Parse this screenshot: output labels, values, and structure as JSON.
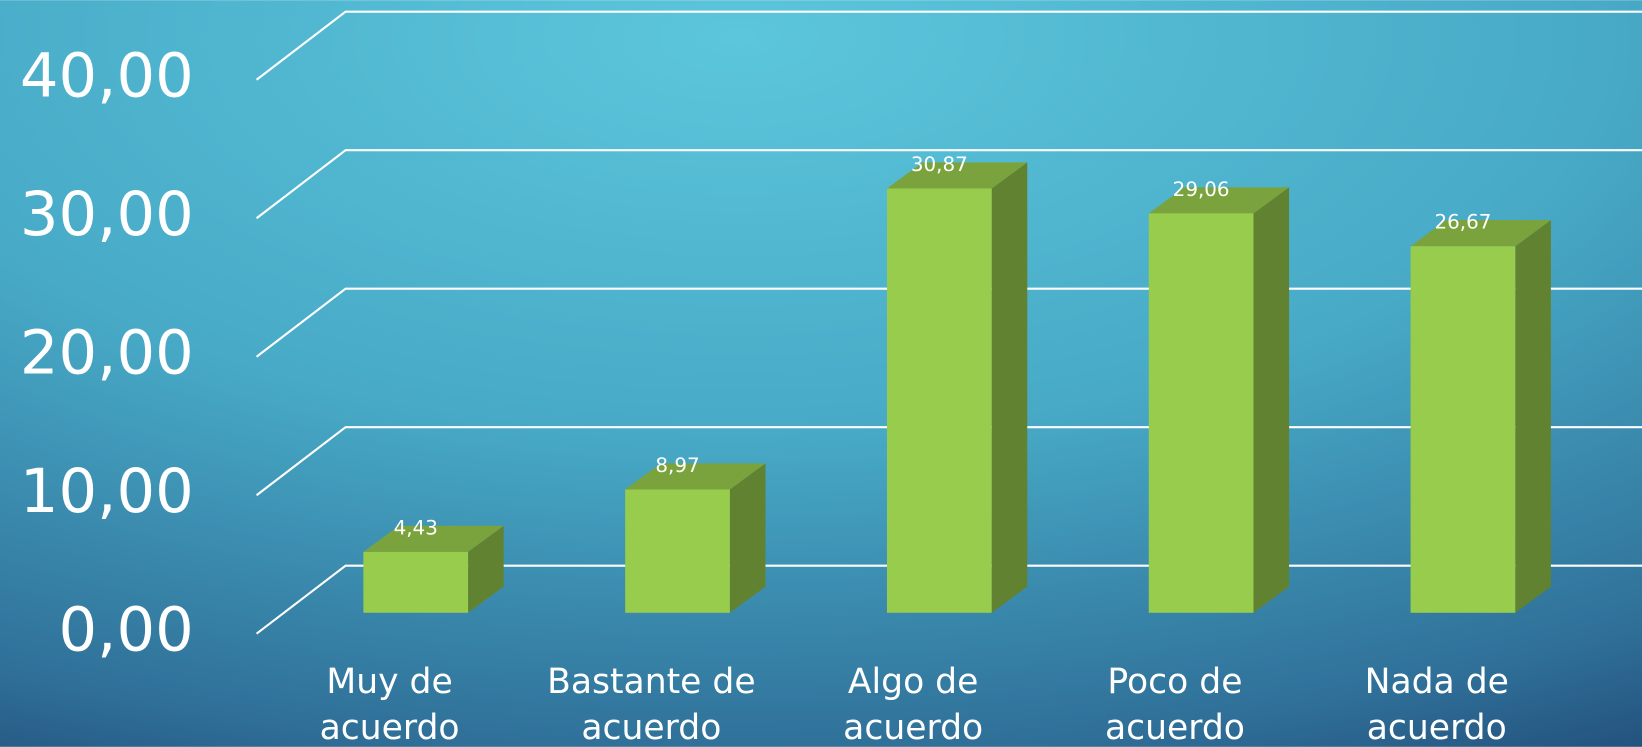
{
  "chart_data": {
    "type": "bar3d",
    "categories": [
      "Muy de acuerdo",
      "Bastante de acuerdo",
      "Algo de acuerdo",
      "Poco de acuerdo",
      "Nada de acuerdo"
    ],
    "values": [
      4.43,
      8.97,
      30.87,
      29.06,
      26.67
    ],
    "value_labels": [
      "4,43",
      "8,97",
      "30,87",
      "29,06",
      "26,67"
    ],
    "color": "#98cc4c",
    "ylim": [
      0,
      40
    ],
    "yticks": [
      {
        "value": 0,
        "label": "0,00"
      },
      {
        "value": 10,
        "label": "10,00"
      },
      {
        "value": 20,
        "label": "20,00"
      },
      {
        "value": 30,
        "label": "30,00"
      },
      {
        "value": 40,
        "label": "40,00"
      }
    ],
    "grid": true
  }
}
